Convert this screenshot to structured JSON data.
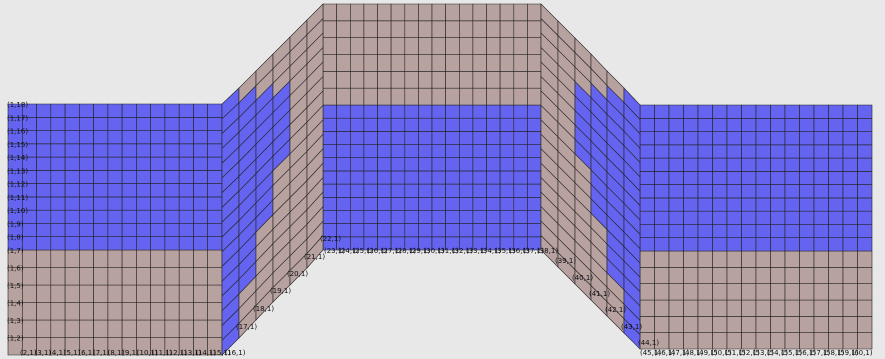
{
  "view": {
    "background": "#e8e8e8",
    "colors": {
      "saturated_zone": "#6464f0",
      "unsaturated_zone": "#b8a2a0",
      "grid_line": "#222222"
    }
  },
  "mesh": {
    "left_column_node_labels": [
      "(1,18)",
      "(1,17)",
      "(1,16)",
      "(1,15)",
      "(1,14)",
      "(1,13)",
      "(1,12)",
      "(1,11)",
      "(1,10)",
      "(1,9)",
      "(1,8)",
      "(1,7)",
      "(1,6)",
      "(1,5)",
      "(1,4)",
      "(1,3)",
      "(1,2)"
    ],
    "bottom_left_node_labels": [
      "(2,1)",
      "(3,1)",
      "(4,1)",
      "(5,1)",
      "(6,1)",
      "(7,1)",
      "(8,1)",
      "(9,1)",
      "(10,1)",
      "(11,1)",
      "(12,1)",
      "(13,1)",
      "(14,1)",
      "(15,1)",
      "(16,1)"
    ],
    "left_slope_node_labels": [
      "(17,1)",
      "(18,1)",
      "(19,1)",
      "(20,1)",
      "(21,1)",
      "(22,1)"
    ],
    "top_floor_node_labels": [
      "(23,1)",
      "(24,1)",
      "(25,1)",
      "(26,1)",
      "(27,1)",
      "(28,1)",
      "(29,1)",
      "(30,1)",
      "(31,1)",
      "(32,1)",
      "(33,1)",
      "(34,1)",
      "(35,1)",
      "(36,1)",
      "(37,1)",
      "(38,1)"
    ],
    "right_slope_node_labels": [
      "(39,1)",
      "(40,1)",
      "(41,1)",
      "(42,1)",
      "(43,1)",
      "(44,1)"
    ],
    "bottom_right_node_labels": [
      "(45,1)",
      "(46,1)",
      "(47,1)",
      "(48,1)",
      "(49,1)",
      "(50,1)",
      "(51,1)",
      "(52,1)",
      "(53,1)",
      "(54,1)",
      "(55,1)",
      "(56,1)",
      "(57,1)",
      "(58,1)",
      "(59,1)",
      "(60,1)"
    ]
  }
}
